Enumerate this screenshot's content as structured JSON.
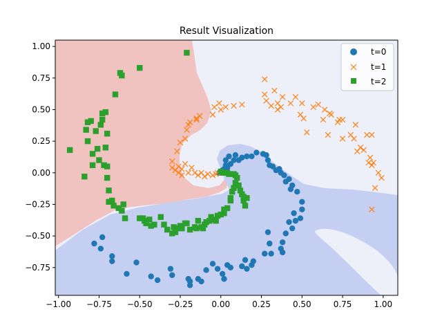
{
  "chart_data": {
    "type": "scatter",
    "title": "Result Visualization",
    "xlabel": "",
    "ylabel": "",
    "xlim": [
      -1.02,
      1.09
    ],
    "ylim": [
      -0.97,
      1.05
    ],
    "xticks": [
      -1.0,
      -0.75,
      -0.5,
      -0.25,
      0.0,
      0.25,
      0.5,
      0.75,
      1.0
    ],
    "xtick_labels": [
      "−1.00",
      "−0.75",
      "−0.50",
      "−0.25",
      "0.00",
      "0.25",
      "0.50",
      "0.75",
      "1.00"
    ],
    "yticks": [
      -0.75,
      -0.5,
      -0.25,
      0.0,
      0.25,
      0.5,
      0.75,
      1.0
    ],
    "ytick_labels": [
      "−0.75",
      "−0.50",
      "−0.25",
      "0.00",
      "0.25",
      "0.50",
      "0.75",
      "1.00"
    ],
    "grid": false,
    "legend_position": "top-right",
    "background_regions": [
      {
        "name": "t=2 region",
        "color": "#f0c2c0"
      },
      {
        "name": "t=1 region",
        "color": "#eef0f9"
      },
      {
        "name": "t=0 region",
        "color": "#c5cff2"
      }
    ],
    "series": [
      {
        "name": "t=0",
        "marker": "circle",
        "color": "#1f77b4",
        "points": [
          [
            -0.78,
            -0.56
          ],
          [
            -0.73,
            -0.51
          ],
          [
            -0.74,
            -0.6
          ],
          [
            -0.67,
            -0.66
          ],
          [
            -0.67,
            -0.7
          ],
          [
            -0.58,
            -0.8
          ],
          [
            -0.52,
            -0.71
          ],
          [
            -0.43,
            -0.82
          ],
          [
            -0.39,
            -0.85
          ],
          [
            -0.31,
            -0.76
          ],
          [
            -0.3,
            -0.81
          ],
          [
            -0.2,
            -0.84
          ],
          [
            -0.19,
            -0.86
          ],
          [
            -0.19,
            -0.89
          ],
          [
            -0.14,
            -0.84
          ],
          [
            -0.12,
            -0.86
          ],
          [
            -0.09,
            -0.77
          ],
          [
            -0.05,
            -0.72
          ],
          [
            -0.02,
            -0.76
          ],
          [
            0.01,
            -0.8
          ],
          [
            0.02,
            -0.84
          ],
          [
            0.04,
            -0.73
          ],
          [
            0.06,
            -0.75
          ],
          [
            0.13,
            -0.74
          ],
          [
            0.15,
            -0.69
          ],
          [
            0.16,
            -0.76
          ],
          [
            0.19,
            -0.73
          ],
          [
            0.2,
            -0.7
          ],
          [
            0.27,
            -0.64
          ],
          [
            0.29,
            -0.47
          ],
          [
            0.3,
            -0.56
          ],
          [
            0.31,
            -0.64
          ],
          [
            0.37,
            -0.6
          ],
          [
            0.38,
            -0.63
          ],
          [
            0.38,
            -0.55
          ],
          [
            0.4,
            -0.48
          ],
          [
            0.42,
            -0.39
          ],
          [
            0.44,
            -0.44
          ],
          [
            0.45,
            -0.32
          ],
          [
            0.46,
            -0.38
          ],
          [
            0.49,
            -0.36
          ],
          [
            0.5,
            -0.29
          ],
          [
            0.5,
            -0.23
          ],
          [
            0.47,
            -0.15
          ],
          [
            0.44,
            -0.1
          ],
          [
            0.43,
            -0.13
          ],
          [
            0.42,
            -0.05
          ],
          [
            0.39,
            -0.02
          ],
          [
            0.4,
            -0.07
          ],
          [
            0.37,
            0.0
          ],
          [
            0.36,
            0.03
          ],
          [
            0.34,
            0.02
          ],
          [
            0.32,
            0.05
          ],
          [
            0.3,
            0.06
          ],
          [
            0.29,
            0.1
          ],
          [
            0.28,
            0.14
          ],
          [
            0.26,
            0.15
          ],
          [
            0.22,
            0.16
          ],
          [
            0.19,
            0.13
          ],
          [
            0.16,
            0.13
          ],
          [
            0.13,
            0.12
          ],
          [
            0.11,
            0.1
          ],
          [
            0.09,
            0.14
          ],
          [
            0.08,
            0.1
          ],
          [
            0.06,
            0.07
          ],
          [
            0.05,
            0.13
          ],
          [
            0.03,
            0.1
          ],
          [
            0.03,
            0.06
          ],
          [
            0.02,
            0.03
          ],
          [
            0.01,
            0.02
          ],
          [
            0.0,
            0.0
          ],
          [
            -0.01,
            0.0
          ],
          [
            0.04,
            0.04
          ]
        ]
      },
      {
        "name": "t=1",
        "marker": "x",
        "color": "#ff7f0e",
        "points": [
          [
            -0.3,
            0.09
          ],
          [
            -0.26,
            0.05
          ],
          [
            -0.28,
            0.02
          ],
          [
            -0.22,
            0.07
          ],
          [
            -0.24,
            0.03
          ],
          [
            -0.2,
            0.0
          ],
          [
            -0.18,
            0.04
          ],
          [
            -0.16,
            0.0
          ],
          [
            -0.14,
            -0.02
          ],
          [
            -0.12,
            0.0
          ],
          [
            -0.1,
            -0.03
          ],
          [
            -0.08,
            -0.01
          ],
          [
            -0.05,
            -0.02
          ],
          [
            -0.03,
            -0.01
          ],
          [
            -0.02,
            0.0
          ],
          [
            -0.26,
            0.0
          ],
          [
            -0.24,
            -0.02
          ],
          [
            -0.3,
            0.04
          ],
          [
            -0.27,
            0.17
          ],
          [
            -0.25,
            0.24
          ],
          [
            -0.22,
            0.27
          ],
          [
            -0.21,
            0.34
          ],
          [
            -0.2,
            0.38
          ],
          [
            -0.19,
            0.4
          ],
          [
            -0.15,
            0.42
          ],
          [
            -0.13,
            0.45
          ],
          [
            -0.15,
            0.43
          ],
          [
            -0.05,
            0.46
          ],
          [
            -0.04,
            0.52
          ],
          [
            0.0,
            0.5
          ],
          [
            -0.01,
            0.55
          ],
          [
            0.03,
            0.52
          ],
          [
            0.08,
            0.53
          ],
          [
            0.13,
            0.54
          ],
          [
            0.27,
            0.62
          ],
          [
            0.28,
            0.57
          ],
          [
            0.27,
            0.74
          ],
          [
            0.31,
            0.53
          ],
          [
            0.33,
            0.65
          ],
          [
            0.35,
            0.55
          ],
          [
            0.35,
            0.5
          ],
          [
            0.37,
            0.52
          ],
          [
            0.38,
            0.6
          ],
          [
            0.43,
            0.55
          ],
          [
            0.46,
            0.6
          ],
          [
            0.5,
            0.55
          ],
          [
            0.49,
            0.46
          ],
          [
            0.51,
            0.43
          ],
          [
            0.53,
            0.32
          ],
          [
            0.57,
            0.52
          ],
          [
            0.6,
            0.54
          ],
          [
            0.64,
            0.5
          ],
          [
            0.67,
            0.47
          ],
          [
            0.66,
            0.3
          ],
          [
            0.68,
            0.46
          ],
          [
            0.72,
            0.4
          ],
          [
            0.73,
            0.42
          ],
          [
            0.75,
            0.27
          ],
          [
            0.75,
            0.42
          ],
          [
            0.8,
            0.3
          ],
          [
            0.82,
            0.27
          ],
          [
            0.84,
            0.17
          ],
          [
            0.86,
            0.2
          ],
          [
            0.88,
            0.18
          ],
          [
            0.9,
            0.3
          ],
          [
            0.93,
            0.3
          ],
          [
            0.91,
            0.08
          ],
          [
            0.92,
            0.12
          ],
          [
            0.93,
            0.06
          ],
          [
            0.94,
            0.08
          ],
          [
            0.97,
            0.0
          ],
          [
            0.93,
            -0.29
          ],
          [
            0.95,
            -0.12
          ],
          [
            0.99,
            -0.04
          ],
          [
            0.83,
            0.38
          ],
          [
            0.63,
            0.42
          ]
        ]
      },
      {
        "name": "t=2",
        "marker": "square",
        "color": "#2ca02c",
        "points": [
          [
            -0.93,
            0.18
          ],
          [
            -0.84,
            -0.03
          ],
          [
            -0.82,
            0.25
          ],
          [
            -0.83,
            0.34
          ],
          [
            -0.82,
            0.4
          ],
          [
            -0.8,
            0.41
          ],
          [
            -0.79,
            0.15
          ],
          [
            -0.79,
            0.06
          ],
          [
            -0.77,
            0.33
          ],
          [
            -0.76,
            0.19
          ],
          [
            -0.75,
            0.1
          ],
          [
            -0.74,
            0.38
          ],
          [
            -0.73,
            0.47
          ],
          [
            -0.73,
            0.42
          ],
          [
            -0.72,
            0.06
          ],
          [
            -0.71,
            0.2
          ],
          [
            -0.71,
            0.48
          ],
          [
            -0.7,
            0.31
          ],
          [
            -0.7,
            -0.04
          ],
          [
            -0.7,
            0.05
          ],
          [
            -0.69,
            -0.14
          ],
          [
            -0.69,
            -0.23
          ],
          [
            -0.67,
            -0.22
          ],
          [
            -0.66,
            -0.26
          ],
          [
            -0.65,
            0.62
          ],
          [
            -0.63,
            -0.28
          ],
          [
            -0.62,
            0.79
          ],
          [
            -0.61,
            0.77
          ],
          [
            -0.61,
            -0.3
          ],
          [
            -0.6,
            -0.25
          ],
          [
            -0.59,
            -0.36
          ],
          [
            -0.5,
            -0.36
          ],
          [
            -0.5,
            0.83
          ],
          [
            -0.48,
            -0.36
          ],
          [
            -0.47,
            -0.38
          ],
          [
            -0.46,
            -0.4
          ],
          [
            -0.44,
            -0.37
          ],
          [
            -0.43,
            -0.42
          ],
          [
            -0.41,
            -0.41
          ],
          [
            -0.37,
            -0.35
          ],
          [
            -0.35,
            -0.41
          ],
          [
            -0.33,
            -0.45
          ],
          [
            -0.3,
            -0.48
          ],
          [
            -0.29,
            -0.43
          ],
          [
            -0.28,
            -0.47
          ],
          [
            -0.26,
            -0.44
          ],
          [
            -0.25,
            -0.42
          ],
          [
            -0.24,
            -0.44
          ],
          [
            -0.22,
            -0.4
          ],
          [
            -0.21,
            -0.4
          ],
          [
            -0.19,
            -0.45
          ],
          [
            -0.16,
            -0.43
          ],
          [
            -0.15,
            -0.44
          ],
          [
            -0.14,
            -0.38
          ],
          [
            -0.12,
            -0.43
          ],
          [
            -0.11,
            -0.44
          ],
          [
            -0.1,
            -0.41
          ],
          [
            -0.09,
            -0.39
          ],
          [
            -0.07,
            -0.38
          ],
          [
            -0.06,
            -0.35
          ],
          [
            -0.05,
            -0.37
          ],
          [
            -0.04,
            -0.37
          ],
          [
            -0.03,
            -0.38
          ],
          [
            -0.02,
            -0.34
          ],
          [
            0.0,
            -0.33
          ],
          [
            0.02,
            -0.32
          ],
          [
            0.02,
            -0.29
          ],
          [
            0.04,
            -0.28
          ],
          [
            0.06,
            -0.22
          ],
          [
            0.06,
            -0.2
          ],
          [
            0.07,
            -0.15
          ],
          [
            0.08,
            -0.12
          ],
          [
            0.09,
            -0.08
          ],
          [
            0.1,
            -0.04
          ],
          [
            0.11,
            -0.1
          ],
          [
            0.12,
            -0.14
          ],
          [
            0.13,
            -0.17
          ],
          [
            0.14,
            -0.19
          ],
          [
            0.14,
            -0.22
          ],
          [
            0.15,
            -0.26
          ],
          [
            0.16,
            -0.2
          ],
          [
            0.02,
            0.0
          ],
          [
            0.05,
            -0.01
          ],
          [
            0.04,
            0.0
          ],
          [
            0.08,
            -0.01
          ],
          [
            0.09,
            -0.02
          ],
          [
            0.0,
            0.01
          ],
          [
            -0.21,
            0.95
          ]
        ]
      }
    ]
  }
}
